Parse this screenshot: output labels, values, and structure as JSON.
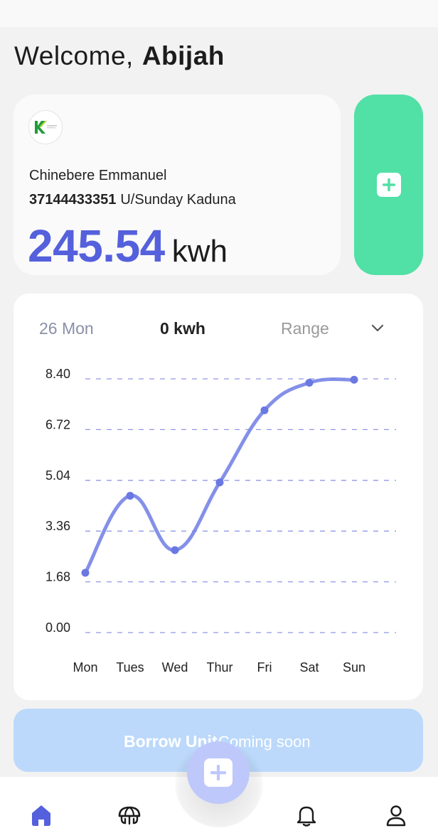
{
  "welcome": {
    "greeting": "Welcome,",
    "name": "Abijah"
  },
  "meter_card": {
    "owner": "Chinebere Emmanuel",
    "meter_number": "37144433351",
    "location": "U/Sunday Kaduna",
    "balance": "245.54",
    "unit": "kwh",
    "logo_icon": "kaduna-electric-logo-icon"
  },
  "add_button": {
    "icon": "plus-icon",
    "color": "#51e0a6"
  },
  "filters": {
    "date": "26 Mon",
    "usage": "0 kwh",
    "range": "Range",
    "range_icon": "chevron-down-icon"
  },
  "chart_data": {
    "type": "line",
    "categories": [
      "Mon",
      "Tues",
      "Wed",
      "Thur",
      "Fri",
      "Sat",
      "Sun"
    ],
    "series": [
      {
        "values": [
          1.98,
          4.53,
          2.73,
          4.97,
          7.36,
          8.27,
          8.37
        ]
      }
    ],
    "y_ticks": [
      "0.00",
      "1.68",
      "3.36",
      "5.04",
      "6.72",
      "8.40"
    ],
    "ylim": [
      0,
      8.4
    ],
    "grid": "dashed-horizontal",
    "line_color": "#7784e6",
    "title": "",
    "xlabel": "",
    "ylabel": ""
  },
  "borrow": {
    "label": "Borrow Unit",
    "note": "Coming soon"
  },
  "nav": {
    "items": [
      {
        "icon": "home-icon",
        "active": true
      },
      {
        "icon": "umbrella-icon",
        "active": false
      },
      {
        "icon": "bell-icon",
        "active": false
      },
      {
        "icon": "profile-icon",
        "active": false
      }
    ],
    "fab_icon": "plus-icon"
  },
  "colors": {
    "accent": "#5560dc",
    "green": "#51e0a6",
    "fab": "#bfc8fb",
    "borrow": "#bcd9fb"
  }
}
